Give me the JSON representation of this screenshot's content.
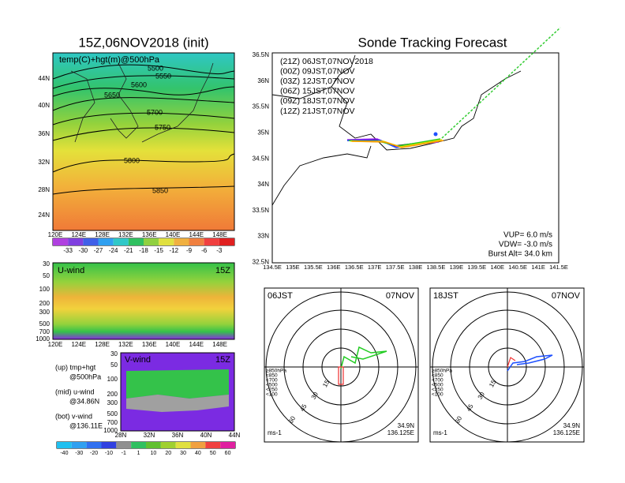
{
  "left": {
    "title": "15Z,06NOV2018 (init)",
    "map": {
      "label": "temp(C)+hgt(m)@500hPa",
      "contours": [
        "5500",
        "5550",
        "5600",
        "5650",
        "5700",
        "5750",
        "5800",
        "5850"
      ],
      "lat_labels": [
        "44N",
        "40N",
        "36N",
        "32N",
        "28N",
        "24N"
      ],
      "lon_labels": [
        "120E",
        "124E",
        "128E",
        "132E",
        "136E",
        "140E",
        "144E",
        "148E"
      ],
      "colorbar": [
        "-33",
        "-30",
        "-27",
        "-24",
        "-21",
        "-18",
        "-15",
        "-12",
        "-9",
        "-6",
        "-3"
      ]
    },
    "uwind": {
      "label": "U-wind",
      "time": "15Z",
      "levels": [
        "30",
        "50",
        "100",
        "200",
        "300",
        "500",
        "700",
        "1000"
      ],
      "lon_labels": [
        "120E",
        "124E",
        "128E",
        "132E",
        "136E",
        "140E",
        "144E",
        "148E"
      ]
    },
    "vwind": {
      "label": "V-wind",
      "time": "15Z",
      "levels": [
        "30",
        "50",
        "100",
        "200",
        "300",
        "500",
        "700",
        "1000"
      ],
      "lat_labels": [
        "28N",
        "32N",
        "36N",
        "40N",
        "44N"
      ]
    },
    "notes": [
      "(up) tmp+hgt",
      "@500hPa",
      "(mid) u-wind",
      "@34.86N",
      "(bot) v-wind",
      "@136.11E"
    ],
    "colorbar": [
      "-40",
      "-30",
      "-20",
      "-10",
      "-1",
      "1",
      "10",
      "20",
      "30",
      "40",
      "50",
      "60"
    ]
  },
  "right": {
    "title": "Sonde Tracking Forecast",
    "lat_labels": [
      "36.5N",
      "36N",
      "35.5N",
      "35N",
      "34.5N",
      "34N",
      "33.5N",
      "33N",
      "32.5N"
    ],
    "lon_labels": [
      "134.5E",
      "135E",
      "135.5E",
      "136E",
      "136.5E",
      "137E",
      "137.5E",
      "138E",
      "138.5E",
      "139E",
      "139.5E",
      "140E",
      "140.5E",
      "141E",
      "141.5E"
    ],
    "legend": [
      "(21Z)  06JST,07NOV2018",
      "(00Z)  09JST,07NOV",
      "(03Z)  12JST,07NOV",
      "(06Z)  15JST,07NOV",
      "(09Z)  18JST,07NOV",
      "(12Z)  21JST,07NOV"
    ],
    "params": [
      "VUP=  6.0 m/s",
      "VDW= -3.0 m/s",
      "Burst Alt= 34.0 km"
    ],
    "polar": [
      {
        "time": "06JST",
        "date": "07NOV",
        "lat": "34.9N",
        "lon": "136.125E",
        "unit": "ms-1",
        "rings": [
          "15",
          "30",
          "45",
          "60"
        ],
        "levels": [
          "≥850hPa",
          "<850",
          "<700",
          "<500",
          "<250",
          "<100"
        ]
      },
      {
        "time": "18JST",
        "date": "07NOV",
        "lat": "34.9N",
        "lon": "136.125E",
        "unit": "ms-1",
        "rings": [
          "15",
          "30",
          "45",
          "60"
        ],
        "levels": [
          "≥850hPa",
          "<850",
          "<700",
          "<500",
          "<250",
          "<100"
        ]
      }
    ]
  }
}
